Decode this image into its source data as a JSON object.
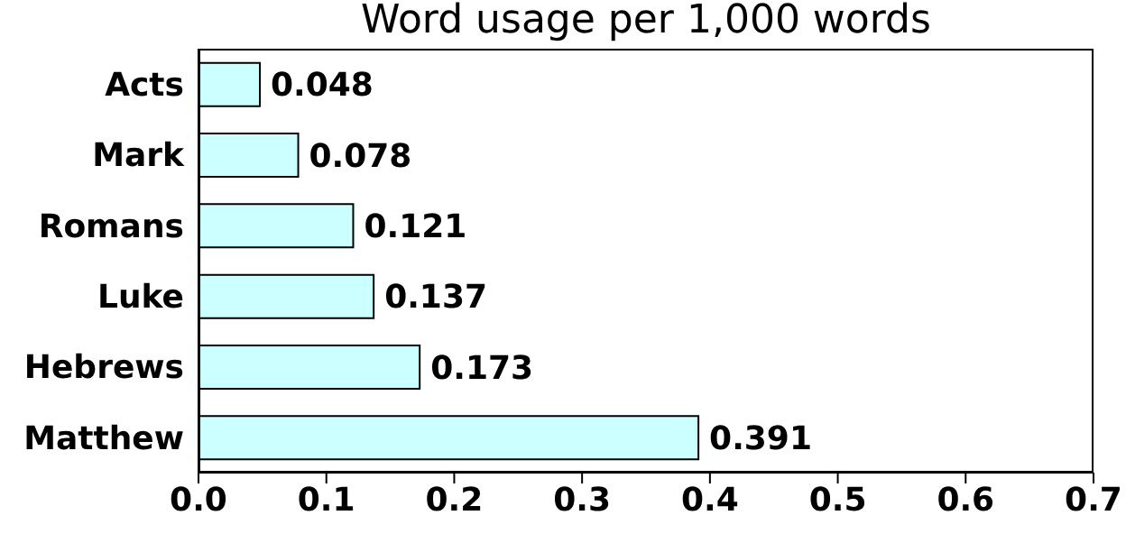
{
  "chart_data": {
    "type": "bar",
    "orientation": "horizontal",
    "title": "Word usage per 1,000 words",
    "categories": [
      "Acts",
      "Mark",
      "Romans",
      "Luke",
      "Hebrews",
      "Matthew"
    ],
    "values": [
      0.048,
      0.078,
      0.121,
      0.137,
      0.173,
      0.391
    ],
    "color": "#ccffff",
    "xlim": [
      0,
      0.7
    ],
    "xticks": [
      {
        "value": 0,
        "label": "0.0"
      },
      0.1,
      0.2,
      0.3,
      0.4,
      0.5,
      0.6,
      0.7
    ],
    "data_labels": true,
    "grid": false
  }
}
